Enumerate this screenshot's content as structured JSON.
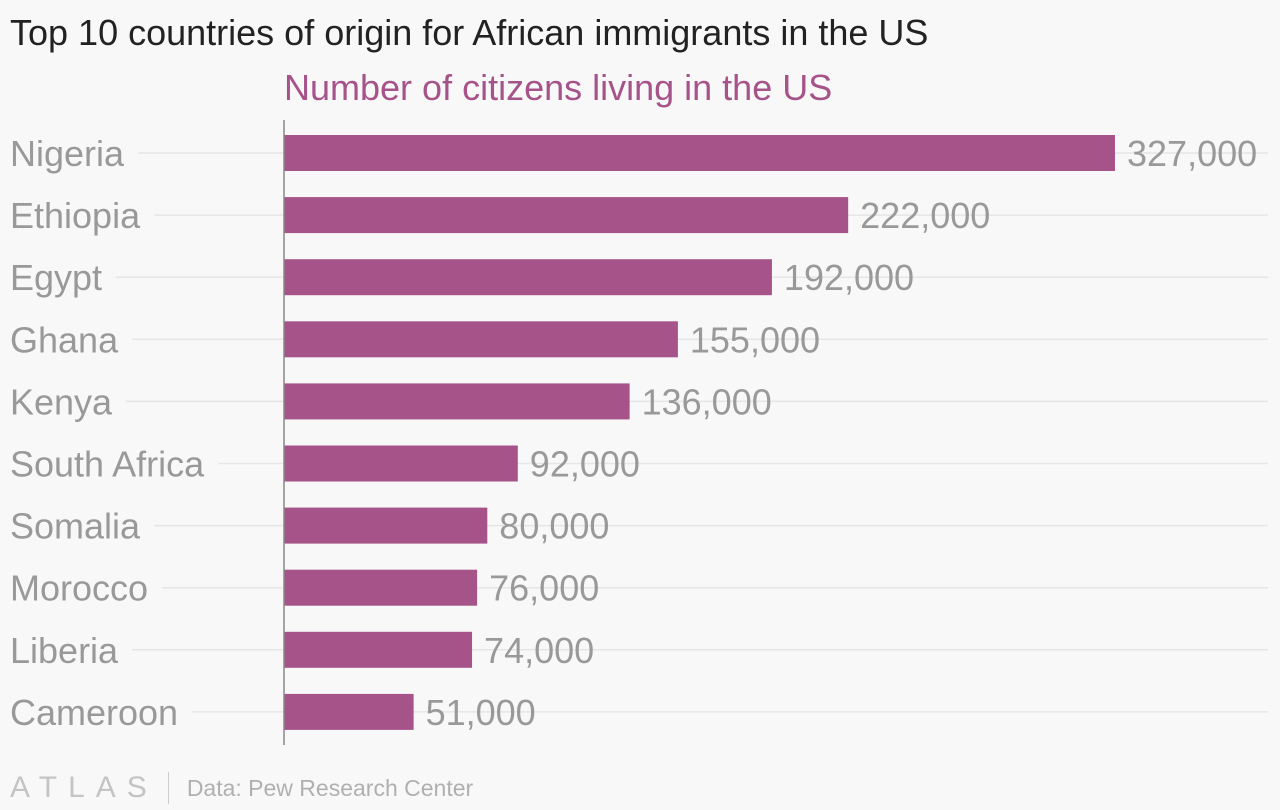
{
  "chart_data": {
    "type": "bar",
    "orientation": "horizontal",
    "title": "Top 10 countries of origin for African immigrants in the US",
    "subtitle": "Number of citizens living in the US",
    "categories": [
      "Nigeria",
      "Ethiopia",
      "Egypt",
      "Ghana",
      "Kenya",
      "South Africa",
      "Somalia",
      "Morocco",
      "Liberia",
      "Cameroon"
    ],
    "values": [
      327000,
      222000,
      192000,
      155000,
      136000,
      92000,
      80000,
      76000,
      74000,
      51000
    ],
    "value_labels": [
      "327,000",
      "222,000",
      "192,000",
      "155,000",
      "136,000",
      "92,000",
      "80,000",
      "76,000",
      "74,000",
      "51,000"
    ],
    "xlim": [
      0,
      327000
    ],
    "bar_color": "#a6538a",
    "grid": true
  },
  "footer": {
    "logo": "ATLAS",
    "source": "Data: Pew Research Center"
  }
}
